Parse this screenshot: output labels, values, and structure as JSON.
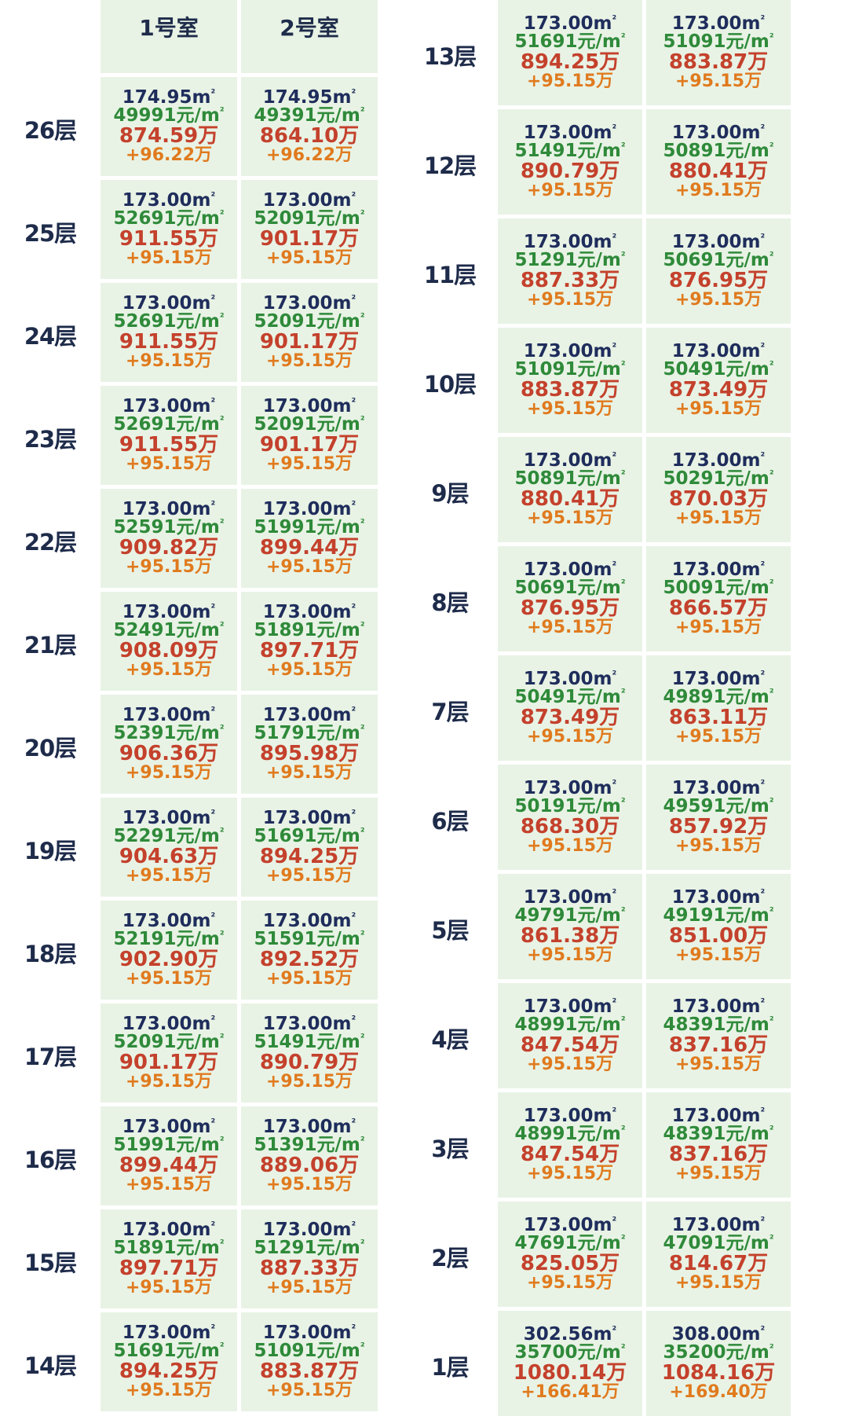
{
  "header": {
    "room_labels": [
      "1号室",
      "2号室"
    ]
  },
  "left_floors": [
    {
      "floor": "26层",
      "units": [
        {
          "area": "174.95m",
          "price": "49991元/m",
          "total": "874.59万",
          "diff": "+96.22万"
        },
        {
          "area": "174.95m",
          "price": "49391元/m",
          "total": "864.10万",
          "diff": "+96.22万"
        }
      ]
    },
    {
      "floor": "25层",
      "units": [
        {
          "area": "173.00m",
          "price": "52691元/m",
          "total": "911.55万",
          "diff": "+95.15万"
        },
        {
          "area": "173.00m",
          "price": "52091元/m",
          "total": "901.17万",
          "diff": "+95.15万"
        }
      ]
    },
    {
      "floor": "24层",
      "units": [
        {
          "area": "173.00m",
          "price": "52691元/m",
          "total": "911.55万",
          "diff": "+95.15万"
        },
        {
          "area": "173.00m",
          "price": "52091元/m",
          "total": "901.17万",
          "diff": "+95.15万"
        }
      ]
    },
    {
      "floor": "23层",
      "units": [
        {
          "area": "173.00m",
          "price": "52691元/m",
          "total": "911.55万",
          "diff": "+95.15万"
        },
        {
          "area": "173.00m",
          "price": "52091元/m",
          "total": "901.17万",
          "diff": "+95.15万"
        }
      ]
    },
    {
      "floor": "22层",
      "units": [
        {
          "area": "173.00m",
          "price": "52591元/m",
          "total": "909.82万",
          "diff": "+95.15万"
        },
        {
          "area": "173.00m",
          "price": "51991元/m",
          "total": "899.44万",
          "diff": "+95.15万"
        }
      ]
    },
    {
      "floor": "21层",
      "units": [
        {
          "area": "173.00m",
          "price": "52491元/m",
          "total": "908.09万",
          "diff": "+95.15万"
        },
        {
          "area": "173.00m",
          "price": "51891元/m",
          "total": "897.71万",
          "diff": "+95.15万"
        }
      ]
    },
    {
      "floor": "20层",
      "units": [
        {
          "area": "173.00m",
          "price": "52391元/m",
          "total": "906.36万",
          "diff": "+95.15万"
        },
        {
          "area": "173.00m",
          "price": "51791元/m",
          "total": "895.98万",
          "diff": "+95.15万"
        }
      ]
    },
    {
      "floor": "19层",
      "units": [
        {
          "area": "173.00m",
          "price": "52291元/m",
          "total": "904.63万",
          "diff": "+95.15万"
        },
        {
          "area": "173.00m",
          "price": "51691元/m",
          "total": "894.25万",
          "diff": "+95.15万"
        }
      ]
    },
    {
      "floor": "18层",
      "units": [
        {
          "area": "173.00m",
          "price": "52191元/m",
          "total": "902.90万",
          "diff": "+95.15万"
        },
        {
          "area": "173.00m",
          "price": "51591元/m",
          "total": "892.52万",
          "diff": "+95.15万"
        }
      ]
    },
    {
      "floor": "17层",
      "units": [
        {
          "area": "173.00m",
          "price": "52091元/m",
          "total": "901.17万",
          "diff": "+95.15万"
        },
        {
          "area": "173.00m",
          "price": "51491元/m",
          "total": "890.79万",
          "diff": "+95.15万"
        }
      ]
    },
    {
      "floor": "16层",
      "units": [
        {
          "area": "173.00m",
          "price": "51991元/m",
          "total": "899.44万",
          "diff": "+95.15万"
        },
        {
          "area": "173.00m",
          "price": "51391元/m",
          "total": "889.06万",
          "diff": "+95.15万"
        }
      ]
    },
    {
      "floor": "15层",
      "units": [
        {
          "area": "173.00m",
          "price": "51891元/m",
          "total": "897.71万",
          "diff": "+95.15万"
        },
        {
          "area": "173.00m",
          "price": "51291元/m",
          "total": "887.33万",
          "diff": "+95.15万"
        }
      ]
    },
    {
      "floor": "14层",
      "units": [
        {
          "area": "173.00m",
          "price": "51691元/m",
          "total": "894.25万",
          "diff": "+95.15万"
        },
        {
          "area": "173.00m",
          "price": "51091元/m",
          "total": "883.87万",
          "diff": "+95.15万"
        }
      ]
    }
  ],
  "right_floors": [
    {
      "floor": "13层",
      "units": [
        {
          "area": "173.00m",
          "price": "51691元/m",
          "total": "894.25万",
          "diff": "+95.15万"
        },
        {
          "area": "173.00m",
          "price": "51091元/m",
          "total": "883.87万",
          "diff": "+95.15万"
        }
      ]
    },
    {
      "floor": "12层",
      "units": [
        {
          "area": "173.00m",
          "price": "51491元/m",
          "total": "890.79万",
          "diff": "+95.15万"
        },
        {
          "area": "173.00m",
          "price": "50891元/m",
          "total": "880.41万",
          "diff": "+95.15万"
        }
      ]
    },
    {
      "floor": "11层",
      "units": [
        {
          "area": "173.00m",
          "price": "51291元/m",
          "total": "887.33万",
          "diff": "+95.15万"
        },
        {
          "area": "173.00m",
          "price": "50691元/m",
          "total": "876.95万",
          "diff": "+95.15万"
        }
      ]
    },
    {
      "floor": "10层",
      "units": [
        {
          "area": "173.00m",
          "price": "51091元/m",
          "total": "883.87万",
          "diff": "+95.15万"
        },
        {
          "area": "173.00m",
          "price": "50491元/m",
          "total": "873.49万",
          "diff": "+95.15万"
        }
      ]
    },
    {
      "floor": "9层",
      "units": [
        {
          "area": "173.00m",
          "price": "50891元/m",
          "total": "880.41万",
          "diff": "+95.15万"
        },
        {
          "area": "173.00m",
          "price": "50291元/m",
          "total": "870.03万",
          "diff": "+95.15万"
        }
      ]
    },
    {
      "floor": "8层",
      "units": [
        {
          "area": "173.00m",
          "price": "50691元/m",
          "total": "876.95万",
          "diff": "+95.15万"
        },
        {
          "area": "173.00m",
          "price": "50091元/m",
          "total": "866.57万",
          "diff": "+95.15万"
        }
      ]
    },
    {
      "floor": "7层",
      "units": [
        {
          "area": "173.00m",
          "price": "50491元/m",
          "total": "873.49万",
          "diff": "+95.15万"
        },
        {
          "area": "173.00m",
          "price": "49891元/m",
          "total": "863.11万",
          "diff": "+95.15万"
        }
      ]
    },
    {
      "floor": "6层",
      "units": [
        {
          "area": "173.00m",
          "price": "50191元/m",
          "total": "868.30万",
          "diff": "+95.15万"
        },
        {
          "area": "173.00m",
          "price": "49591元/m",
          "total": "857.92万",
          "diff": "+95.15万"
        }
      ]
    },
    {
      "floor": "5层",
      "units": [
        {
          "area": "173.00m",
          "price": "49791元/m",
          "total": "861.38万",
          "diff": "+95.15万"
        },
        {
          "area": "173.00m",
          "price": "49191元/m",
          "total": "851.00万",
          "diff": "+95.15万"
        }
      ]
    },
    {
      "floor": "4层",
      "units": [
        {
          "area": "173.00m",
          "price": "48991元/m",
          "total": "847.54万",
          "diff": "+95.15万"
        },
        {
          "area": "173.00m",
          "price": "48391元/m",
          "total": "837.16万",
          "diff": "+95.15万"
        }
      ]
    },
    {
      "floor": "3层",
      "units": [
        {
          "area": "173.00m",
          "price": "48991元/m",
          "total": "847.54万",
          "diff": "+95.15万"
        },
        {
          "area": "173.00m",
          "price": "48391元/m",
          "total": "837.16万",
          "diff": "+95.15万"
        }
      ]
    },
    {
      "floor": "2层",
      "units": [
        {
          "area": "173.00m",
          "price": "47691元/m",
          "total": "825.05万",
          "diff": "+95.15万"
        },
        {
          "area": "173.00m",
          "price": "47091元/m",
          "total": "814.67万",
          "diff": "+95.15万"
        }
      ]
    },
    {
      "floor": "1层",
      "units": [
        {
          "area": "302.56m",
          "price": "35700元/m",
          "total": "1080.14万",
          "diff": "+166.41万"
        },
        {
          "area": "308.00m",
          "price": "35200元/m",
          "total": "1084.16万",
          "diff": "+169.40万"
        }
      ]
    }
  ],
  "unit_superscript": "²"
}
